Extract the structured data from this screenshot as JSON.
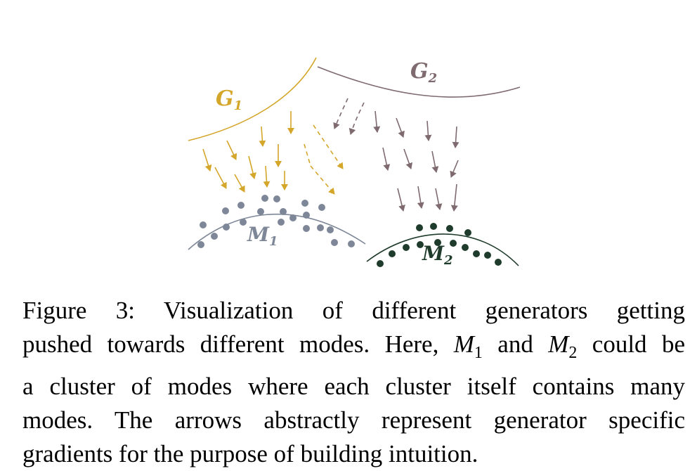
{
  "figure": {
    "labels": {
      "g1": {
        "base": "G",
        "sub": "1"
      },
      "g2": {
        "base": "G",
        "sub": "2"
      },
      "m1": {
        "base": "M",
        "sub": "1"
      },
      "m2": {
        "base": "M",
        "sub": "2"
      }
    },
    "colors": {
      "g1": "#d4a62a",
      "g2": "#7e6a6f",
      "m1": "#7d8797",
      "m2": "#1e3b2b"
    }
  },
  "caption": {
    "line1": "Figure 3:  Visualization of different generators getting",
    "line2_a": "pushed towards different modes. Here, ",
    "m1_base": "M",
    "m1_sub": "1",
    "line2_b": " and ",
    "m2_base": "M",
    "m2_sub": "2",
    "line2_c": " could be",
    "line3": "a cluster of modes where each cluster itself contains many",
    "line4": "modes.  The arrows abstractly represent generator specific",
    "line5": "gradients for the purpose of building intuition."
  }
}
